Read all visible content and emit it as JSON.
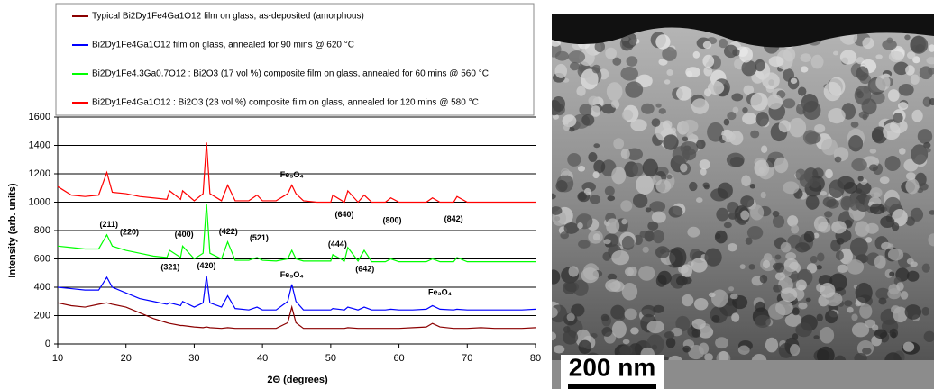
{
  "chart_data": {
    "type": "line",
    "xlabel": "2Θ (degrees)",
    "ylabel": "Intensity (arb. units)",
    "xlim": [
      10,
      80
    ],
    "xticks": [
      10,
      20,
      30,
      40,
      50,
      60,
      70,
      80
    ],
    "ylim": [
      0,
      1600
    ],
    "yticks": [
      0,
      200,
      400,
      600,
      800,
      1000,
      1200,
      1400,
      1600
    ],
    "grid": true,
    "x": [
      10,
      12,
      14,
      16,
      17.2,
      18,
      20,
      22,
      24,
      26,
      26.4,
      28,
      28.3,
      30,
      31.3,
      31.8,
      32.3,
      34,
      34.9,
      36,
      38,
      39.2,
      40,
      42,
      43.7,
      44.3,
      44.9,
      46,
      48,
      50,
      50.3,
      52,
      52.5,
      54,
      54.9,
      56,
      58,
      58.8,
      60,
      62,
      64,
      64.9,
      66,
      68,
      68.5,
      70,
      72,
      74,
      76,
      78,
      80
    ],
    "series": [
      {
        "name": "Typical Bi2Dy1Fe4Ga1O12 film on glass, as-deposited (amorphous)",
        "color": "#8b0000",
        "values": [
          290,
          270,
          260,
          280,
          290,
          280,
          260,
          220,
          180,
          150,
          145,
          130,
          130,
          120,
          115,
          120,
          115,
          110,
          115,
          110,
          110,
          110,
          110,
          110,
          150,
          260,
          150,
          110,
          110,
          110,
          110,
          110,
          115,
          110,
          110,
          110,
          110,
          110,
          110,
          115,
          120,
          145,
          120,
          110,
          110,
          110,
          115,
          110,
          110,
          110,
          115
        ]
      },
      {
        "name": "Bi2Dy1Fe4Ga1O12 film on glass, annealed for 90 mins @ 620 °C",
        "color": "#0000ff",
        "values": [
          400,
          390,
          380,
          380,
          470,
          400,
          360,
          320,
          300,
          280,
          290,
          270,
          300,
          260,
          290,
          480,
          290,
          260,
          340,
          250,
          240,
          260,
          240,
          240,
          300,
          420,
          300,
          240,
          240,
          240,
          250,
          240,
          260,
          240,
          260,
          240,
          240,
          245,
          240,
          240,
          245,
          270,
          245,
          240,
          245,
          240,
          240,
          240,
          240,
          240,
          245
        ]
      },
      {
        "name": "Bi2Dy1Fe4.3Ga0.7O12 : Bi2O3 (17 vol %) composite film on glass, annealed for 60 mins @ 560 °C",
        "color": "#00ff00",
        "values": [
          690,
          680,
          670,
          670,
          770,
          690,
          660,
          640,
          620,
          610,
          660,
          610,
          690,
          600,
          640,
          990,
          640,
          600,
          720,
          590,
          590,
          610,
          590,
          585,
          600,
          660,
          600,
          585,
          585,
          585,
          630,
          585,
          680,
          585,
          660,
          580,
          580,
          600,
          580,
          580,
          580,
          600,
          580,
          580,
          610,
          580,
          580,
          580,
          580,
          580,
          580
        ]
      },
      {
        "name": "Bi2Dy1Fe4Ga1O12 : Bi2O3 (23 vol %) composite film on glass, annealed for 120 mins @ 580 °C",
        "color": "#ff0000",
        "values": [
          1110,
          1050,
          1040,
          1050,
          1210,
          1070,
          1060,
          1040,
          1030,
          1020,
          1080,
          1020,
          1080,
          1010,
          1060,
          1420,
          1060,
          1010,
          1120,
          1010,
          1010,
          1050,
          1010,
          1010,
          1060,
          1120,
          1060,
          1010,
          1000,
          1000,
          1050,
          1000,
          1080,
          1000,
          1050,
          1000,
          1000,
          1030,
          1000,
          1000,
          1000,
          1030,
          1000,
          1000,
          1040,
          1000,
          1000,
          1000,
          1000,
          1000,
          1000
        ]
      }
    ],
    "annotations": [
      "Fe₃O₄",
      "(640)",
      "(800)",
      "(842)",
      "(211)",
      "(220)",
      "(400)",
      "(422)",
      "(521)",
      "(444)",
      "(321)",
      "(420)",
      "(642)",
      "Fe₃O₄",
      "Fe₃O₄"
    ]
  },
  "micrograph": {
    "scale_label": "200 nm"
  }
}
